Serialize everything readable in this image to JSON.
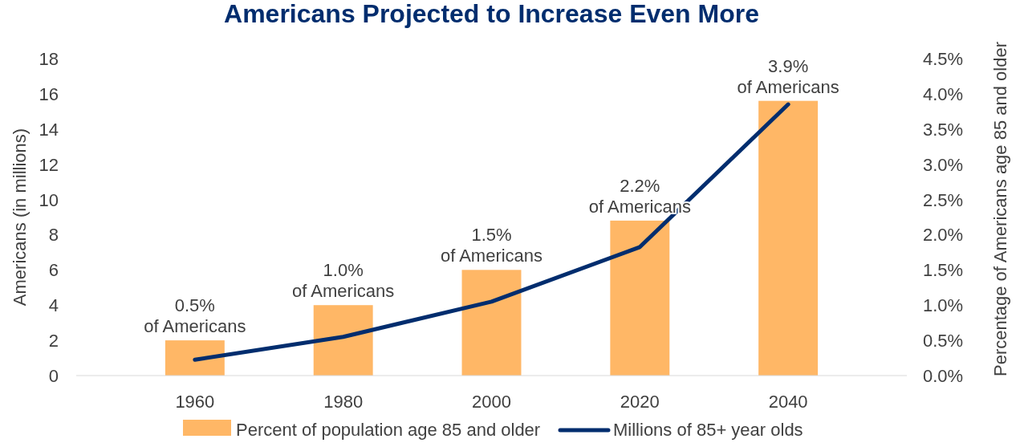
{
  "chart_data": {
    "type": "bar",
    "title": "Americans Projected to Increase Even More",
    "ylabel": "Americans (in millions)",
    "y2label": "Percentage of Americans age 85 and older",
    "categories": [
      "1960",
      "1980",
      "2000",
      "2020",
      "2040"
    ],
    "series": [
      {
        "name": "Percent of population age 85 and older",
        "axis": "y2",
        "color": "#ffb766",
        "values": [
          0.5,
          1.0,
          1.5,
          2.2,
          3.9
        ],
        "value_labels": [
          "0.5%\nof Americans",
          "1.0%\nof Americans",
          "1.5%\nof Americans",
          "2.2%\nof Americans",
          "3.9%\nof Americans"
        ]
      },
      {
        "name": "Millions of 85+ year olds",
        "type": "line",
        "color": "#002d6e",
        "values": [
          0.9,
          2.2,
          4.2,
          7.3,
          15.4
        ],
        "marker": "none"
      }
    ],
    "ylim": [
      0,
      18
    ],
    "yticks": [
      0,
      2,
      4,
      6,
      8,
      10,
      12,
      14,
      16,
      18
    ],
    "y2lim": [
      0,
      4.5
    ],
    "y2ticks": [
      {
        "value": 0,
        "label": "0.0%"
      },
      {
        "value": 0.5,
        "label": "0.5%"
      },
      {
        "value": 1,
        "label": "1.0%"
      },
      {
        "value": 1.5,
        "label": "1.5%"
      },
      {
        "value": 2,
        "label": "2.0%"
      },
      {
        "value": 2.5,
        "label": "2.5%"
      },
      {
        "value": 3,
        "label": "3.0%"
      },
      {
        "value": 3.5,
        "label": "3.5%"
      },
      {
        "value": 4,
        "label": "4.0%"
      },
      {
        "value": 4.5,
        "label": "4.5%"
      }
    ],
    "grid": false,
    "legend": "bottom"
  }
}
